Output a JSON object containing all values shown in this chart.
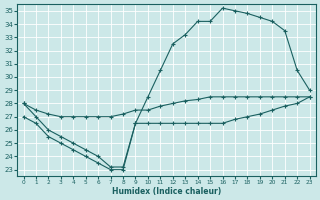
{
  "xlabel": "Humidex (Indice chaleur)",
  "xlim": [
    -0.5,
    23.5
  ],
  "ylim": [
    22.5,
    35.5
  ],
  "yticks": [
    23,
    24,
    25,
    26,
    27,
    28,
    29,
    30,
    31,
    32,
    33,
    34,
    35
  ],
  "xticks": [
    0,
    1,
    2,
    3,
    4,
    5,
    6,
    7,
    8,
    9,
    10,
    11,
    12,
    13,
    14,
    15,
    16,
    17,
    18,
    19,
    20,
    21,
    22,
    23
  ],
  "bg_color": "#cce8e8",
  "line_color": "#1a6060",
  "grid_color": "#b8d8d8",
  "series": [
    {
      "x": [
        0,
        1,
        2,
        3,
        4,
        5,
        6,
        7,
        8,
        9,
        10,
        11,
        12,
        13,
        14,
        15,
        16,
        17,
        18,
        19,
        20,
        21,
        22,
        23
      ],
      "y": [
        28,
        27,
        26,
        25.5,
        25,
        24.5,
        24,
        23.2,
        23.2,
        26.5,
        28.5,
        30.5,
        32.5,
        33.2,
        34.2,
        34.2,
        35.2,
        35.0,
        34.8,
        34.5,
        34.2,
        33.5,
        30.5,
        29.0
      ]
    },
    {
      "x": [
        0,
        1,
        2,
        3,
        4,
        5,
        6,
        7,
        8,
        9,
        10,
        11,
        12,
        13,
        14,
        15,
        16,
        17,
        18,
        19,
        20,
        21,
        22,
        23
      ],
      "y": [
        28,
        27.5,
        27.2,
        27.0,
        27.0,
        27.0,
        27.0,
        27.0,
        27.2,
        27.5,
        27.5,
        27.8,
        28.0,
        28.2,
        28.3,
        28.5,
        28.5,
        28.5,
        28.5,
        28.5,
        28.5,
        28.5,
        28.5,
        28.5
      ]
    },
    {
      "x": [
        0,
        1,
        2,
        3,
        4,
        5,
        6,
        7,
        8,
        9,
        10,
        11,
        12,
        13,
        14,
        15,
        16,
        17,
        18,
        19,
        20,
        21,
        22,
        23
      ],
      "y": [
        27.0,
        26.5,
        25.5,
        25.0,
        24.5,
        24.0,
        23.5,
        23.0,
        23.0,
        26.5,
        26.5,
        26.5,
        26.5,
        26.5,
        26.5,
        26.5,
        26.5,
        26.8,
        27.0,
        27.2,
        27.5,
        27.8,
        28.0,
        28.5
      ]
    }
  ]
}
